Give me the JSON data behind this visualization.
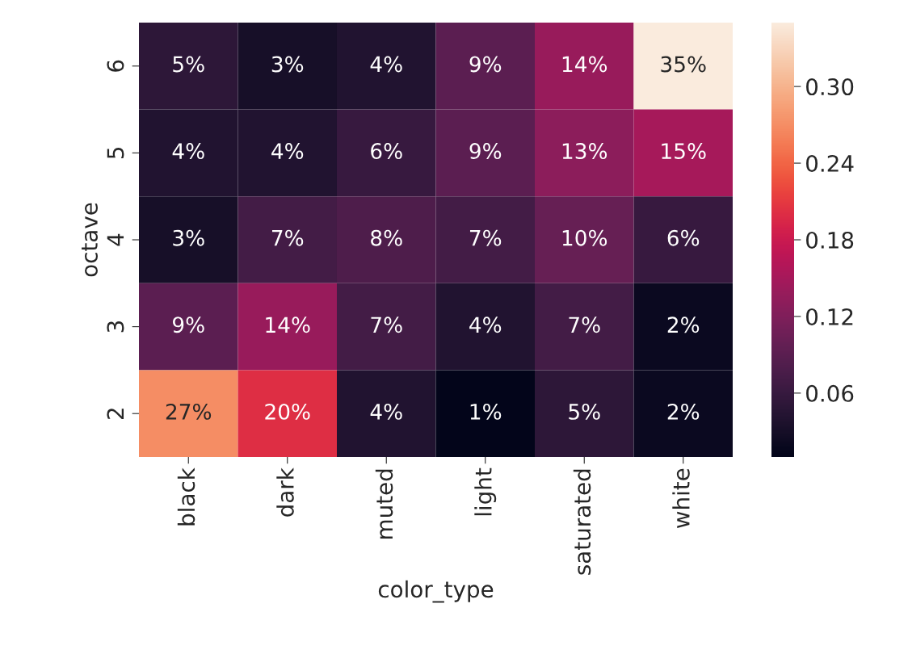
{
  "chart_data": {
    "type": "heatmap",
    "xlabel": "color_type",
    "ylabel": "octave",
    "categories": [
      "black",
      "dark",
      "muted",
      "light",
      "saturated",
      "white"
    ],
    "y_categories": [
      "6",
      "5",
      "4",
      "3",
      "2"
    ],
    "cells": [
      [
        0.05,
        0.03,
        0.04,
        0.09,
        0.14,
        0.35
      ],
      [
        0.04,
        0.04,
        0.06,
        0.09,
        0.13,
        0.15
      ],
      [
        0.03,
        0.07,
        0.08,
        0.07,
        0.1,
        0.06
      ],
      [
        0.09,
        0.14,
        0.07,
        0.04,
        0.07,
        0.02
      ],
      [
        0.27,
        0.2,
        0.04,
        0.01,
        0.05,
        0.02
      ]
    ],
    "cell_labels": [
      [
        "5%",
        "3%",
        "4%",
        "9%",
        "14%",
        "35%"
      ],
      [
        "4%",
        "4%",
        "6%",
        "9%",
        "13%",
        "15%"
      ],
      [
        "3%",
        "7%",
        "8%",
        "7%",
        "10%",
        "6%"
      ],
      [
        "9%",
        "14%",
        "7%",
        "4%",
        "7%",
        "2%"
      ],
      [
        "27%",
        "20%",
        "4%",
        "1%",
        "5%",
        "2%"
      ]
    ],
    "clim": [
      0.01,
      0.35
    ],
    "cticks": [
      {
        "value": 0.06,
        "label": "0.06"
      },
      {
        "value": 0.12,
        "label": "0.12"
      },
      {
        "value": 0.18,
        "label": "0.18"
      },
      {
        "value": 0.24,
        "label": "0.24"
      },
      {
        "value": 0.3,
        "label": "0.30"
      }
    ]
  }
}
